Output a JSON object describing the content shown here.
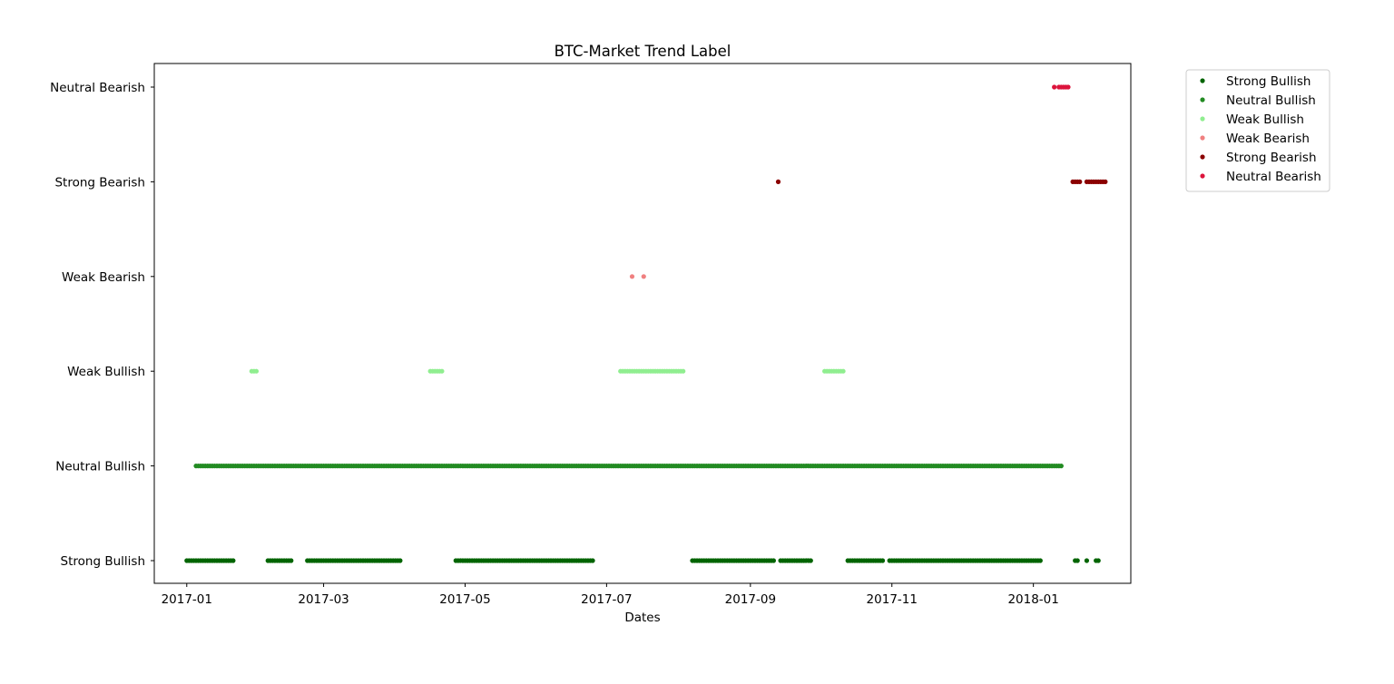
{
  "chart_data": {
    "type": "scatter",
    "title": "BTC-Market Trend Label",
    "xlabel": "Dates",
    "ylabel": "",
    "x_type": "date",
    "xlim": [
      "2016-12-18",
      "2018-02-12"
    ],
    "x_ticks": [
      "2017-01",
      "2017-03",
      "2017-05",
      "2017-07",
      "2017-09",
      "2017-11",
      "2018-01"
    ],
    "categories": [
      "Strong Bullish",
      "Neutral Bullish",
      "Weak Bullish",
      "Weak Bearish",
      "Strong Bearish",
      "Neutral Bearish"
    ],
    "grid": false,
    "legend_position": "outside-top-right",
    "series": [
      {
        "name": "Strong Bullish",
        "color": "#006400",
        "ranges": [
          [
            "2017-01-01",
            "2017-01-21"
          ],
          [
            "2017-02-05",
            "2017-02-15"
          ],
          [
            "2017-02-22",
            "2017-04-03"
          ],
          [
            "2017-04-27",
            "2017-06-25"
          ],
          [
            "2017-08-07",
            "2017-09-11"
          ],
          [
            "2017-09-14",
            "2017-09-27"
          ],
          [
            "2017-10-13",
            "2017-10-28"
          ],
          [
            "2017-10-31",
            "2018-01-04"
          ]
        ],
        "dates": [
          "2018-01-19",
          "2018-01-20",
          "2018-01-24",
          "2018-01-28",
          "2018-01-29"
        ]
      },
      {
        "name": "Neutral Bullish",
        "color": "#228B22",
        "ranges": [
          [
            "2017-01-22",
            "2017-01-28"
          ],
          [
            "2017-02-01",
            "2017-02-04"
          ],
          [
            "2017-02-16",
            "2017-02-21"
          ],
          [
            "2017-04-04",
            "2017-04-15"
          ],
          [
            "2017-04-22",
            "2017-04-26"
          ],
          [
            "2017-06-26",
            "2017-07-06"
          ],
          [
            "2017-08-04",
            "2017-08-06"
          ],
          [
            "2017-09-08",
            "2017-09-12"
          ],
          [
            "2017-09-28",
            "2017-10-02"
          ],
          [
            "2017-01-05",
            "2018-01-05"
          ]
        ],
        "dates": [
          "2017-07-11",
          "2017-10-12",
          "2017-10-27",
          "2018-01-06",
          "2018-01-07",
          "2018-01-08",
          "2018-01-09",
          "2018-01-10",
          "2018-01-11",
          "2018-01-12",
          "2018-01-13"
        ]
      },
      {
        "name": "Weak Bullish",
        "color": "#90EE90",
        "ranges": [
          [
            "2017-01-29",
            "2017-01-31"
          ],
          [
            "2017-04-16",
            "2017-04-21"
          ],
          [
            "2017-07-07",
            "2017-08-03"
          ],
          [
            "2017-10-03",
            "2017-10-11"
          ]
        ],
        "dates": []
      },
      {
        "name": "Weak Bearish",
        "color": "#F08080",
        "ranges": [],
        "dates": [
          "2017-07-12",
          "2017-07-17"
        ]
      },
      {
        "name": "Strong Bearish",
        "color": "#8B0000",
        "ranges": [
          [
            "2018-01-18",
            "2018-01-21"
          ],
          [
            "2018-01-24",
            "2018-01-25"
          ],
          [
            "2018-01-26",
            "2018-01-30"
          ]
        ],
        "dates": [
          "2017-09-13",
          "2018-01-31",
          "2018-02-01"
        ]
      },
      {
        "name": "Neutral Bearish",
        "color": "#DC143C",
        "ranges": [
          [
            "2018-01-12",
            "2018-01-16"
          ]
        ],
        "dates": [
          "2018-01-10"
        ]
      }
    ]
  }
}
